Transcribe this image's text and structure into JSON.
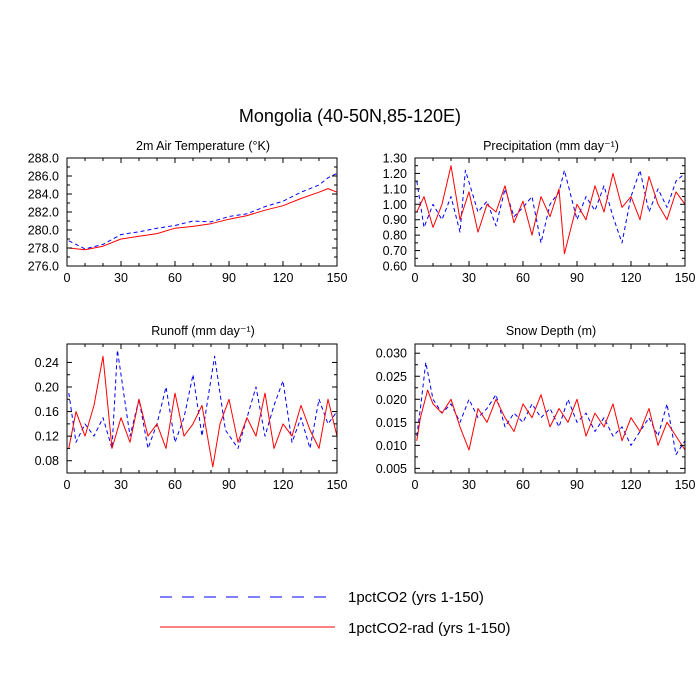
{
  "title": "Mongolia (40-50N,85-120E)",
  "colors": {
    "series1": "#0000ff",
    "series2": "#ff0000"
  },
  "legend": {
    "position": "bottom-center",
    "items": [
      {
        "label": "1pctCO2 (yrs 1-150)",
        "color": "#0000ff",
        "style": "dashed"
      },
      {
        "label": "1pctCO2-rad (yrs 1-150)",
        "color": "#ff0000",
        "style": "solid"
      }
    ]
  },
  "chart_data": [
    {
      "type": "line",
      "title": "2m Air Temperature (°K)",
      "xlim": [
        0,
        150
      ],
      "xticks": [
        0,
        30,
        60,
        90,
        120,
        150
      ],
      "ylim": [
        276,
        288
      ],
      "yticks": [
        276,
        278,
        280,
        282,
        284,
        286,
        288
      ],
      "ytick_labels": [
        "276.0",
        "278.0",
        "280.0",
        "282.0",
        "284.0",
        "286.0",
        "288.0"
      ],
      "series": [
        {
          "name": "1pctCO2 (yrs 1-150)",
          "style": "dashed",
          "color": "#0000ff",
          "x": [
            1,
            10,
            20,
            30,
            40,
            50,
            60,
            70,
            80,
            90,
            100,
            110,
            120,
            130,
            140,
            145,
            150
          ],
          "y": [
            278.8,
            277.9,
            278.4,
            279.5,
            279.8,
            280.2,
            280.5,
            281.0,
            280.9,
            281.5,
            281.8,
            282.6,
            283.2,
            284.2,
            285.0,
            285.8,
            286.3
          ]
        },
        {
          "name": "1pctCO2-rad (yrs 1-150)",
          "style": "solid",
          "color": "#ff0000",
          "x": [
            1,
            10,
            20,
            30,
            40,
            50,
            60,
            70,
            80,
            90,
            100,
            110,
            120,
            130,
            140,
            145,
            150
          ],
          "y": [
            278.0,
            277.8,
            278.2,
            279.0,
            279.3,
            279.6,
            280.2,
            280.4,
            280.7,
            281.2,
            281.6,
            282.2,
            282.7,
            283.5,
            284.2,
            284.6,
            284.2
          ]
        }
      ]
    },
    {
      "type": "line",
      "title": "Precipitation (mm day⁻¹)",
      "xlim": [
        0,
        150
      ],
      "xticks": [
        0,
        30,
        60,
        90,
        120,
        150
      ],
      "ylim": [
        0.6,
        1.3
      ],
      "yticks": [
        0.6,
        0.7,
        0.8,
        0.9,
        1.0,
        1.1,
        1.2,
        1.3
      ],
      "ytick_labels": [
        "0.60",
        "0.70",
        "0.80",
        "0.90",
        "1.00",
        "1.10",
        "1.20",
        "1.30"
      ],
      "series": [
        {
          "name": "1pctCO2 (yrs 1-150)",
          "style": "dashed",
          "color": "#0000ff",
          "x": [
            1,
            5,
            10,
            15,
            20,
            25,
            28,
            35,
            40,
            45,
            50,
            55,
            60,
            65,
            70,
            75,
            80,
            83,
            90,
            95,
            100,
            105,
            110,
            115,
            120,
            125,
            130,
            135,
            140,
            145,
            150
          ],
          "y": [
            1.15,
            0.85,
            1.0,
            0.9,
            1.05,
            0.82,
            1.22,
            0.95,
            1.02,
            0.86,
            1.1,
            0.92,
            0.98,
            1.05,
            0.75,
            1.0,
            1.08,
            1.22,
            0.9,
            1.05,
            0.96,
            1.12,
            0.92,
            0.75,
            1.05,
            1.22,
            0.95,
            1.1,
            0.98,
            1.15,
            1.2
          ]
        },
        {
          "name": "1pctCO2-rad (yrs 1-150)",
          "style": "solid",
          "color": "#ff0000",
          "x": [
            1,
            5,
            10,
            15,
            20,
            25,
            30,
            35,
            40,
            45,
            50,
            55,
            60,
            65,
            70,
            75,
            80,
            83,
            90,
            95,
            100,
            105,
            110,
            115,
            120,
            125,
            130,
            135,
            140,
            145,
            150
          ],
          "y": [
            0.95,
            1.05,
            0.85,
            1.0,
            1.25,
            0.9,
            1.08,
            0.82,
            1.0,
            0.95,
            1.12,
            0.88,
            1.02,
            0.8,
            1.05,
            0.92,
            1.1,
            0.68,
            1.0,
            0.9,
            1.12,
            0.95,
            1.2,
            0.98,
            1.05,
            0.9,
            1.18,
            1.0,
            0.9,
            1.08,
            1.0
          ]
        }
      ]
    },
    {
      "type": "line",
      "title": "Runoff (mm day⁻¹)",
      "xlim": [
        0,
        150
      ],
      "xticks": [
        0,
        30,
        60,
        90,
        120,
        150
      ],
      "ylim": [
        0.06,
        0.27
      ],
      "yticks": [
        0.08,
        0.12,
        0.16,
        0.2,
        0.24
      ],
      "ytick_labels": [
        "0.08",
        "0.12",
        "0.16",
        "0.20",
        "0.24"
      ],
      "series": [
        {
          "name": "1pctCO2 (yrs 1-150)",
          "style": "dashed",
          "color": "#0000ff",
          "x": [
            1,
            5,
            10,
            15,
            20,
            25,
            28,
            35,
            40,
            45,
            50,
            55,
            60,
            65,
            70,
            75,
            82,
            88,
            95,
            100,
            105,
            110,
            115,
            120,
            125,
            130,
            135,
            140,
            145,
            150
          ],
          "y": [
            0.19,
            0.11,
            0.14,
            0.12,
            0.15,
            0.1,
            0.26,
            0.12,
            0.18,
            0.1,
            0.14,
            0.2,
            0.11,
            0.15,
            0.22,
            0.12,
            0.25,
            0.13,
            0.1,
            0.15,
            0.2,
            0.12,
            0.17,
            0.21,
            0.11,
            0.15,
            0.1,
            0.18,
            0.14,
            0.16
          ]
        },
        {
          "name": "1pctCO2-rad (yrs 1-150)",
          "style": "solid",
          "color": "#ff0000",
          "x": [
            1,
            5,
            10,
            15,
            20,
            25,
            30,
            35,
            40,
            45,
            50,
            55,
            60,
            65,
            70,
            75,
            81,
            85,
            90,
            95,
            100,
            105,
            110,
            115,
            120,
            125,
            130,
            135,
            140,
            145,
            150
          ],
          "y": [
            0.1,
            0.16,
            0.12,
            0.17,
            0.25,
            0.1,
            0.15,
            0.11,
            0.18,
            0.12,
            0.14,
            0.1,
            0.19,
            0.12,
            0.14,
            0.17,
            0.07,
            0.14,
            0.18,
            0.11,
            0.15,
            0.12,
            0.19,
            0.1,
            0.14,
            0.12,
            0.17,
            0.13,
            0.1,
            0.18,
            0.12
          ]
        }
      ]
    },
    {
      "type": "line",
      "title": "Snow Depth (m)",
      "xlim": [
        0,
        150
      ],
      "xticks": [
        0,
        30,
        60,
        90,
        120,
        150
      ],
      "ylim": [
        0.004,
        0.032
      ],
      "yticks": [
        0.005,
        0.01,
        0.015,
        0.02,
        0.025,
        0.03
      ],
      "ytick_labels": [
        "0.005",
        "0.010",
        "0.015",
        "0.020",
        "0.025",
        "0.030"
      ],
      "series": [
        {
          "name": "1pctCO2 (yrs 1-150)",
          "style": "dashed",
          "color": "#0000ff",
          "x": [
            1,
            3,
            6,
            10,
            15,
            20,
            25,
            30,
            35,
            40,
            45,
            50,
            55,
            60,
            65,
            70,
            75,
            80,
            85,
            90,
            95,
            100,
            105,
            110,
            115,
            120,
            125,
            130,
            135,
            140,
            145,
            150
          ],
          "y": [
            0.012,
            0.018,
            0.028,
            0.02,
            0.017,
            0.019,
            0.015,
            0.02,
            0.016,
            0.018,
            0.021,
            0.014,
            0.017,
            0.015,
            0.019,
            0.016,
            0.018,
            0.014,
            0.02,
            0.015,
            0.017,
            0.013,
            0.016,
            0.012,
            0.014,
            0.01,
            0.013,
            0.016,
            0.012,
            0.019,
            0.008,
            0.011
          ]
        },
        {
          "name": "1pctCO2-rad (yrs 1-150)",
          "style": "solid",
          "color": "#ff0000",
          "x": [
            1,
            3,
            7,
            10,
            15,
            20,
            25,
            30,
            35,
            40,
            45,
            50,
            55,
            60,
            65,
            70,
            75,
            80,
            85,
            90,
            95,
            100,
            105,
            110,
            115,
            120,
            125,
            130,
            135,
            140,
            145,
            150
          ],
          "y": [
            0.011,
            0.016,
            0.022,
            0.019,
            0.017,
            0.02,
            0.014,
            0.009,
            0.018,
            0.015,
            0.02,
            0.016,
            0.013,
            0.019,
            0.016,
            0.021,
            0.014,
            0.018,
            0.015,
            0.02,
            0.012,
            0.017,
            0.014,
            0.019,
            0.011,
            0.016,
            0.013,
            0.018,
            0.01,
            0.015,
            0.012,
            0.009
          ]
        }
      ]
    }
  ]
}
